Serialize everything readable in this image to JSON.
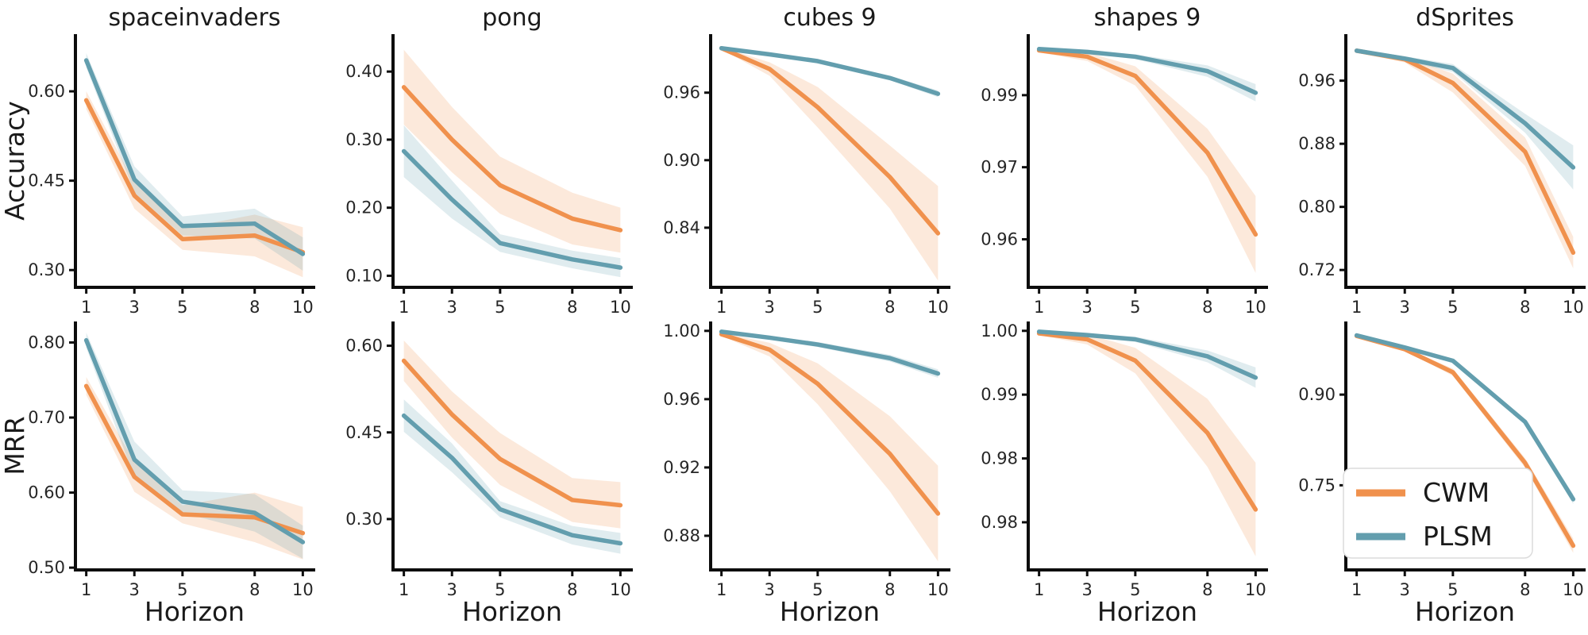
{
  "figure_title": "",
  "palette": {
    "cwm": "#F0914D",
    "plsm": "#639EAE",
    "spine": "#0d0d0d",
    "text": "#1a1a1a",
    "tick_text": "#262626",
    "legend_border": "#dcdcdc",
    "legend_bg": "#ffffff"
  },
  "legend": {
    "entries": [
      {
        "label": "CWM",
        "color": "#F0914D"
      },
      {
        "label": "PLSM",
        "color": "#639EAE"
      }
    ]
  },
  "axis_labels": {
    "row_ylabels": [
      "Accuracy",
      "MRR"
    ],
    "xlabel": "Horizon"
  },
  "chart_data": [
    {
      "id": "spaceinvaders-accuracy",
      "type": "line",
      "row": 0,
      "col": 0,
      "title": "spaceinvaders",
      "ylabel": "Accuracy",
      "xlabel": null,
      "x": [
        1,
        3,
        5,
        8,
        10
      ],
      "xticks": [
        "1",
        "3",
        "5",
        "8",
        "10"
      ],
      "xlim": [
        0.55,
        10.45
      ],
      "ylim": [
        0.271,
        0.696
      ],
      "yticks": [
        {
          "v": 0.6,
          "label": "0.60"
        },
        {
          "v": 0.45,
          "label": "0.45"
        },
        {
          "v": 0.3,
          "label": "0.30"
        }
      ],
      "series": [
        {
          "name": "CWM",
          "color": "#F0914D",
          "values": [
            0.585,
            0.425,
            0.352,
            0.358,
            0.33
          ],
          "band": [
            0.015,
            0.022,
            0.018,
            0.035,
            0.042
          ]
        },
        {
          "name": "PLSM",
          "color": "#639EAE",
          "values": [
            0.652,
            0.452,
            0.374,
            0.378,
            0.327
          ],
          "band": [
            0.012,
            0.022,
            0.016,
            0.025,
            0.028
          ]
        }
      ],
      "show_legend": false
    },
    {
      "id": "pong-accuracy",
      "type": "line",
      "row": 0,
      "col": 1,
      "title": "pong",
      "ylabel": null,
      "xlabel": null,
      "x": [
        1,
        3,
        5,
        8,
        10
      ],
      "xticks": [
        "1",
        "3",
        "5",
        "8",
        "10"
      ],
      "xlim": [
        0.55,
        10.45
      ],
      "ylim": [
        0.083,
        0.455
      ],
      "yticks": [
        {
          "v": 0.4,
          "label": "0.40"
        },
        {
          "v": 0.3,
          "label": "0.30"
        },
        {
          "v": 0.2,
          "label": "0.20"
        },
        {
          "v": 0.1,
          "label": "0.10"
        }
      ],
      "series": [
        {
          "name": "CWM",
          "color": "#F0914D",
          "values": [
            0.377,
            0.3,
            0.233,
            0.184,
            0.167
          ],
          "band": [
            0.055,
            0.048,
            0.042,
            0.038,
            0.033
          ]
        },
        {
          "name": "PLSM",
          "color": "#639EAE",
          "values": [
            0.283,
            0.212,
            0.148,
            0.124,
            0.112
          ],
          "band": [
            0.038,
            0.028,
            0.013,
            0.013,
            0.014
          ]
        }
      ],
      "show_legend": false
    },
    {
      "id": "cubes9-accuracy",
      "type": "line",
      "row": 0,
      "col": 2,
      "title": "cubes 9",
      "ylabel": null,
      "xlabel": null,
      "x": [
        1,
        3,
        5,
        8,
        10
      ],
      "xticks": [
        "1",
        "3",
        "5",
        "8",
        "10"
      ],
      "xlim": [
        0.55,
        10.45
      ],
      "ylim": [
        0.787,
        1.012
      ],
      "yticks": [
        {
          "v": 0.96,
          "label": "0.96"
        },
        {
          "v": 0.9,
          "label": "0.90"
        },
        {
          "v": 0.84,
          "label": "0.84"
        }
      ],
      "series": [
        {
          "name": "CWM",
          "color": "#F0914D",
          "values": [
            0.9995,
            0.981,
            0.947,
            0.885,
            0.835
          ],
          "band": [
            0.001,
            0.006,
            0.018,
            0.028,
            0.042
          ]
        },
        {
          "name": "PLSM",
          "color": "#639EAE",
          "values": [
            0.9995,
            0.994,
            0.988,
            0.973,
            0.959
          ],
          "band": [
            0.0005,
            0.001,
            0.0015,
            0.002,
            0.003
          ]
        }
      ],
      "show_legend": false
    },
    {
      "id": "shapes9-accuracy",
      "type": "line",
      "row": 0,
      "col": 3,
      "title": "shapes 9",
      "ylabel": null,
      "xlabel": null,
      "x": [
        1,
        3,
        5,
        8,
        10
      ],
      "xticks": [
        "1",
        "3",
        "5",
        "8",
        "10"
      ],
      "xlim": [
        0.55,
        10.45
      ],
      "ylim": [
        0.95,
        1.0027
      ],
      "yticks": [
        {
          "v": 0.99,
          "label": "0.99"
        },
        {
          "v": 0.975,
          "label": "0.97"
        },
        {
          "v": 0.96,
          "label": "0.96"
        }
      ],
      "series": [
        {
          "name": "CWM",
          "color": "#F0914D",
          "values": [
            0.9993,
            0.998,
            0.994,
            0.978,
            0.961
          ],
          "band": [
            0.0004,
            0.0009,
            0.002,
            0.005,
            0.008
          ]
        },
        {
          "name": "PLSM",
          "color": "#639EAE",
          "values": [
            0.9996,
            0.999,
            0.998,
            0.995,
            0.9905
          ],
          "band": [
            0.0002,
            0.0003,
            0.0005,
            0.0012,
            0.0018
          ]
        }
      ],
      "show_legend": false
    },
    {
      "id": "dsprites-accuracy",
      "type": "line",
      "row": 0,
      "col": 4,
      "title": "dSprites",
      "ylabel": null,
      "xlabel": null,
      "x": [
        1,
        3,
        5,
        8,
        10
      ],
      "xticks": [
        "1",
        "3",
        "5",
        "8",
        "10"
      ],
      "xlim": [
        0.55,
        10.45
      ],
      "ylim": [
        0.698,
        1.019
      ],
      "yticks": [
        {
          "v": 0.96,
          "label": "0.96"
        },
        {
          "v": 0.88,
          "label": "0.88"
        },
        {
          "v": 0.8,
          "label": "0.80"
        },
        {
          "v": 0.72,
          "label": "0.72"
        }
      ],
      "series": [
        {
          "name": "CWM",
          "color": "#F0914D",
          "values": [
            0.998,
            0.987,
            0.957,
            0.87,
            0.742
          ],
          "band": [
            0.002,
            0.004,
            0.012,
            0.018,
            0.02
          ]
        },
        {
          "name": "PLSM",
          "color": "#639EAE",
          "values": [
            0.998,
            0.988,
            0.976,
            0.906,
            0.85
          ],
          "band": [
            0.002,
            0.003,
            0.005,
            0.012,
            0.028
          ]
        }
      ],
      "show_legend": false
    },
    {
      "id": "spaceinvaders-mrr",
      "type": "line",
      "row": 1,
      "col": 0,
      "title": null,
      "ylabel": "MRR",
      "xlabel": "Horizon",
      "x": [
        1,
        3,
        5,
        8,
        10
      ],
      "xticks": [
        "1",
        "3",
        "5",
        "8",
        "10"
      ],
      "xlim": [
        0.55,
        10.45
      ],
      "ylim": [
        0.497,
        0.828
      ],
      "yticks": [
        {
          "v": 0.8,
          "label": "0.80"
        },
        {
          "v": 0.7,
          "label": "0.70"
        },
        {
          "v": 0.6,
          "label": "0.60"
        },
        {
          "v": 0.5,
          "label": "0.50"
        }
      ],
      "series": [
        {
          "name": "CWM",
          "color": "#F0914D",
          "values": [
            0.742,
            0.621,
            0.571,
            0.567,
            0.546
          ],
          "band": [
            0.012,
            0.02,
            0.012,
            0.033,
            0.035
          ]
        },
        {
          "name": "PLSM",
          "color": "#639EAE",
          "values": [
            0.803,
            0.644,
            0.588,
            0.573,
            0.534
          ],
          "band": [
            0.01,
            0.024,
            0.015,
            0.025,
            0.022
          ]
        }
      ],
      "show_legend": false
    },
    {
      "id": "pong-mrr",
      "type": "line",
      "row": 1,
      "col": 1,
      "title": null,
      "ylabel": null,
      "xlabel": "Horizon",
      "x": [
        1,
        3,
        5,
        8,
        10
      ],
      "xticks": [
        "1",
        "3",
        "5",
        "8",
        "10"
      ],
      "xlim": [
        0.55,
        10.45
      ],
      "ylim": [
        0.212,
        0.642
      ],
      "yticks": [
        {
          "v": 0.6,
          "label": "0.60"
        },
        {
          "v": 0.45,
          "label": "0.45"
        },
        {
          "v": 0.3,
          "label": "0.30"
        }
      ],
      "series": [
        {
          "name": "CWM",
          "color": "#F0914D",
          "values": [
            0.574,
            0.481,
            0.404,
            0.333,
            0.324
          ],
          "band": [
            0.035,
            0.04,
            0.045,
            0.038,
            0.04
          ]
        },
        {
          "name": "PLSM",
          "color": "#639EAE",
          "values": [
            0.479,
            0.406,
            0.317,
            0.272,
            0.258
          ],
          "band": [
            0.028,
            0.025,
            0.014,
            0.016,
            0.018
          ]
        }
      ],
      "show_legend": false
    },
    {
      "id": "cubes9-mrr",
      "type": "line",
      "row": 1,
      "col": 2,
      "title": null,
      "ylabel": null,
      "xlabel": "Horizon",
      "x": [
        1,
        3,
        5,
        8,
        10
      ],
      "xticks": [
        "1",
        "3",
        "5",
        "8",
        "10"
      ],
      "xlim": [
        0.55,
        10.45
      ],
      "ylim": [
        0.86,
        1.0055
      ],
      "yticks": [
        {
          "v": 1.0,
          "label": "1.00"
        },
        {
          "v": 0.96,
          "label": "0.96"
        },
        {
          "v": 0.92,
          "label": "0.92"
        },
        {
          "v": 0.88,
          "label": "0.88"
        }
      ],
      "series": [
        {
          "name": "CWM",
          "color": "#F0914D",
          "values": [
            0.998,
            0.989,
            0.969,
            0.928,
            0.893
          ],
          "band": [
            0.001,
            0.004,
            0.012,
            0.022,
            0.028
          ]
        },
        {
          "name": "PLSM",
          "color": "#639EAE",
          "values": [
            0.9995,
            0.996,
            0.992,
            0.984,
            0.975
          ],
          "band": [
            0.0005,
            0.001,
            0.0015,
            0.002,
            0.0025
          ]
        }
      ],
      "show_legend": false
    },
    {
      "id": "shapes9-mrr",
      "type": "line",
      "row": 1,
      "col": 3,
      "title": null,
      "ylabel": null,
      "xlabel": "Horizon",
      "x": [
        1,
        3,
        5,
        8,
        10
      ],
      "xticks": [
        "1",
        "3",
        "5",
        "8",
        "10"
      ],
      "xlim": [
        0.55,
        10.45
      ],
      "ylim": [
        0.9719,
        1.0011
      ],
      "yticks": [
        {
          "v": 1.0,
          "label": "1.00"
        },
        {
          "v": 0.9925,
          "label": "0.99"
        },
        {
          "v": 0.985,
          "label": "0.98"
        },
        {
          "v": 0.9775,
          "label": "0.98"
        }
      ],
      "series": [
        {
          "name": "CWM",
          "color": "#F0914D",
          "values": [
            0.9997,
            0.999,
            0.9965,
            0.988,
            0.979
          ],
          "band": [
            0.0002,
            0.0006,
            0.0015,
            0.004,
            0.0055
          ]
        },
        {
          "name": "PLSM",
          "color": "#639EAE",
          "values": [
            0.9999,
            0.9995,
            0.999,
            0.997,
            0.9945
          ],
          "band": [
            0.0001,
            0.0002,
            0.0003,
            0.0007,
            0.0012
          ]
        }
      ],
      "show_legend": false
    },
    {
      "id": "dsprites-mrr",
      "type": "line",
      "row": 1,
      "col": 4,
      "title": null,
      "ylabel": null,
      "xlabel": "Horizon",
      "x": [
        1,
        3,
        5,
        8,
        10
      ],
      "xticks": [
        "1",
        "3",
        "5",
        "8",
        "10"
      ],
      "xlim": [
        0.55,
        10.45
      ],
      "ylim": [
        0.61,
        1.021
      ],
      "yticks": [
        {
          "v": 0.9,
          "label": "0.90"
        },
        {
          "v": 0.75,
          "label": "0.75"
        }
      ],
      "series": [
        {
          "name": "CWM",
          "color": "#F0914D",
          "values": [
            0.997,
            0.975,
            0.937,
            0.787,
            0.65
          ],
          "band": [
            0.001,
            0.002,
            0.006,
            0.008,
            0.012
          ]
        },
        {
          "name": "PLSM",
          "color": "#639EAE",
          "values": [
            0.998,
            0.978,
            0.956,
            0.855,
            0.727
          ],
          "band": [
            0.001,
            0.001,
            0.002,
            0.004,
            0.008
          ]
        }
      ],
      "show_legend": true
    }
  ]
}
